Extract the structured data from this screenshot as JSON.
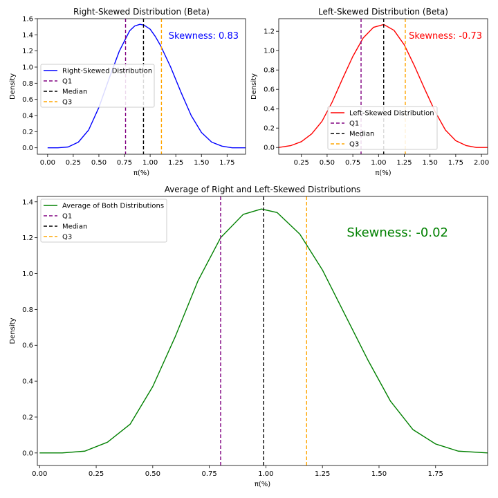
{
  "colors": {
    "right": "#0000ff",
    "left": "#ff0000",
    "average": "#008000",
    "q1": "#800080",
    "median": "#000000",
    "q3": "#ffa500",
    "legend_border": "#cccccc"
  },
  "chart_data": [
    {
      "id": "right",
      "type": "line",
      "title": "Right-Skewed Distribution (Beta)",
      "xlabel": "π(%)",
      "ylabel": "Density",
      "xlim": [
        -0.1,
        1.93
      ],
      "ylim": [
        -0.08,
        1.6
      ],
      "xticks": [
        0.0,
        0.25,
        0.5,
        0.75,
        1.0,
        1.25,
        1.5,
        1.75
      ],
      "xtick_labels": [
        "0.00",
        "0.25",
        "0.50",
        "0.75",
        "1.00",
        "1.25",
        "1.50",
        "1.75"
      ],
      "yticks": [
        0.0,
        0.2,
        0.4,
        0.6,
        0.8,
        1.0,
        1.2,
        1.4,
        1.6
      ],
      "ytick_labels": [
        "0.0",
        "0.2",
        "0.4",
        "0.6",
        "0.8",
        "1.0",
        "1.2",
        "1.4",
        "1.6"
      ],
      "series": [
        {
          "name": "Right-Skewed Distribution",
          "color": "right",
          "x": [
            0.0,
            0.1,
            0.2,
            0.3,
            0.4,
            0.5,
            0.6,
            0.7,
            0.8,
            0.85,
            0.9,
            0.94,
            1.0,
            1.05,
            1.1,
            1.2,
            1.3,
            1.4,
            1.5,
            1.6,
            1.7,
            1.8,
            1.93
          ],
          "y": [
            0.0,
            0.0,
            0.01,
            0.07,
            0.22,
            0.5,
            0.86,
            1.2,
            1.45,
            1.51,
            1.53,
            1.52,
            1.47,
            1.38,
            1.27,
            1.0,
            0.69,
            0.4,
            0.19,
            0.07,
            0.02,
            0.0,
            0.0
          ]
        }
      ],
      "vlines": [
        {
          "name": "Q1",
          "x": 0.76,
          "color": "q1"
        },
        {
          "name": "Median",
          "x": 0.935,
          "color": "median"
        },
        {
          "name": "Q3",
          "x": 1.11,
          "color": "q3"
        }
      ],
      "annotation": {
        "text": "Skewness: 0.83",
        "color": "right"
      },
      "legend_placement": "center-left"
    },
    {
      "id": "left",
      "type": "line",
      "title": "Left-Skewed Distribution (Beta)",
      "xlabel": "π(%)",
      "ylabel": "Density",
      "xlim": [
        0.03,
        2.06
      ],
      "ylim": [
        -0.07,
        1.33
      ],
      "xticks": [
        0.25,
        0.5,
        0.75,
        1.0,
        1.25,
        1.5,
        1.75,
        2.0
      ],
      "xtick_labels": [
        "0.25",
        "0.50",
        "0.75",
        "1.00",
        "1.25",
        "1.50",
        "1.75",
        "2.00"
      ],
      "yticks": [
        0.0,
        0.2,
        0.4,
        0.6,
        0.8,
        1.0,
        1.2
      ],
      "ytick_labels": [
        "0.0",
        "0.2",
        "0.4",
        "0.6",
        "0.8",
        "1.0",
        "1.2"
      ],
      "series": [
        {
          "name": "Left-Skewed Distribution",
          "color": "left",
          "x": [
            0.03,
            0.15,
            0.25,
            0.35,
            0.45,
            0.55,
            0.65,
            0.75,
            0.85,
            0.95,
            1.05,
            1.15,
            1.25,
            1.35,
            1.45,
            1.55,
            1.65,
            1.75,
            1.85,
            1.95,
            2.06
          ],
          "y": [
            0.0,
            0.02,
            0.06,
            0.14,
            0.27,
            0.47,
            0.71,
            0.94,
            1.13,
            1.24,
            1.27,
            1.21,
            1.06,
            0.84,
            0.6,
            0.37,
            0.18,
            0.07,
            0.02,
            0.0,
            0.0
          ]
        }
      ],
      "vlines": [
        {
          "name": "Q1",
          "x": 0.83,
          "color": "q1"
        },
        {
          "name": "Median",
          "x": 1.05,
          "color": "median"
        },
        {
          "name": "Q3",
          "x": 1.26,
          "color": "q3"
        }
      ],
      "annotation": {
        "text": "Skewness: -0.73",
        "color": "left"
      },
      "legend_placement": "lower-center"
    },
    {
      "id": "average",
      "type": "line",
      "title": "Average of Right and Left-Skewed Distributions",
      "xlabel": "π(%)",
      "ylabel": "Density",
      "xlim": [
        -0.01,
        1.98
      ],
      "ylim": [
        -0.07,
        1.43
      ],
      "xticks": [
        0.0,
        0.25,
        0.5,
        0.75,
        1.0,
        1.25,
        1.5,
        1.75
      ],
      "xtick_labels": [
        "0.00",
        "0.25",
        "0.50",
        "0.75",
        "1.00",
        "1.25",
        "1.50",
        "1.75"
      ],
      "yticks": [
        0.0,
        0.2,
        0.4,
        0.6,
        0.8,
        1.0,
        1.2,
        1.4
      ],
      "ytick_labels": [
        "0.0",
        "0.2",
        "0.4",
        "0.6",
        "0.8",
        "1.0",
        "1.2",
        "1.4"
      ],
      "series": [
        {
          "name": "Average of Both Distributions",
          "color": "average",
          "x": [
            0.0,
            0.1,
            0.2,
            0.3,
            0.4,
            0.5,
            0.6,
            0.7,
            0.8,
            0.9,
            0.98,
            1.05,
            1.15,
            1.25,
            1.35,
            1.45,
            1.55,
            1.65,
            1.75,
            1.85,
            1.98
          ],
          "y": [
            0.0,
            0.0,
            0.01,
            0.06,
            0.16,
            0.37,
            0.65,
            0.96,
            1.2,
            1.33,
            1.36,
            1.34,
            1.22,
            1.02,
            0.77,
            0.52,
            0.29,
            0.13,
            0.05,
            0.01,
            0.0
          ]
        }
      ],
      "vlines": [
        {
          "name": "Q1",
          "x": 0.8,
          "color": "q1"
        },
        {
          "name": "Median",
          "x": 0.99,
          "color": "median"
        },
        {
          "name": "Q3",
          "x": 1.18,
          "color": "q3"
        }
      ],
      "annotation": {
        "text": "Skewness: -0.02",
        "color": "average"
      },
      "legend_placement": "upper-left"
    }
  ]
}
